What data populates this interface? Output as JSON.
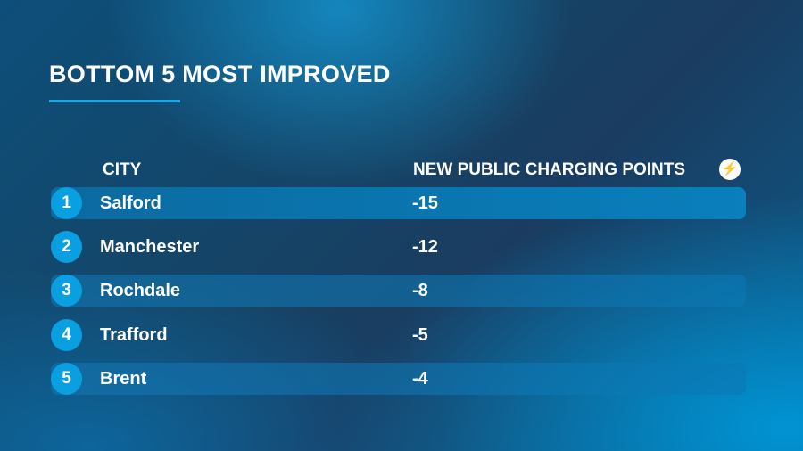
{
  "title": "BOTTOM 5 MOST IMPROVED",
  "headers": {
    "city": "CITY",
    "points": "NEW PUBLIC CHARGING POINTS",
    "icon": "lightning-bolt-icon"
  },
  "rows": [
    {
      "rank": "1",
      "city": "Salford",
      "value": "-15"
    },
    {
      "rank": "2",
      "city": "Manchester",
      "value": "-12"
    },
    {
      "rank": "3",
      "city": "Rochdale",
      "value": "-8"
    },
    {
      "rank": "4",
      "city": "Trafford",
      "value": "-5"
    },
    {
      "rank": "5",
      "city": "Brent",
      "value": "-4"
    }
  ],
  "colors": {
    "accent": "#0a9fe0"
  }
}
